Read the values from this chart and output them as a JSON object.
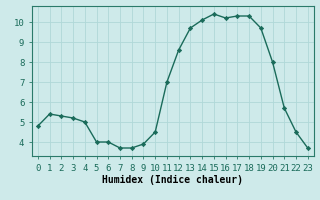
{
  "x": [
    0,
    1,
    2,
    3,
    4,
    5,
    6,
    7,
    8,
    9,
    10,
    11,
    12,
    13,
    14,
    15,
    16,
    17,
    18,
    19,
    20,
    21,
    22,
    23
  ],
  "y": [
    4.8,
    5.4,
    5.3,
    5.2,
    5.0,
    4.0,
    4.0,
    3.7,
    3.7,
    3.9,
    4.5,
    7.0,
    8.6,
    9.7,
    10.1,
    10.4,
    10.2,
    10.3,
    10.3,
    9.7,
    8.0,
    5.7,
    4.5,
    3.7
  ],
  "line_color": "#1a6b5a",
  "marker": "D",
  "marker_size": 2.2,
  "linewidth": 1.0,
  "background_color": "#ceeaea",
  "grid_color": "#b0d8d8",
  "xlabel": "Humidex (Indice chaleur)",
  "xlabel_fontsize": 7,
  "tick_fontsize": 6.5,
  "xlim": [
    -0.5,
    23.5
  ],
  "ylim": [
    3.3,
    10.8
  ],
  "yticks": [
    4,
    5,
    6,
    7,
    8,
    9,
    10
  ],
  "xticks": [
    0,
    1,
    2,
    3,
    4,
    5,
    6,
    7,
    8,
    9,
    10,
    11,
    12,
    13,
    14,
    15,
    16,
    17,
    18,
    19,
    20,
    21,
    22,
    23
  ],
  "spine_color": "#2a7a6a",
  "axis_bottom_color": "#2a7a6a"
}
